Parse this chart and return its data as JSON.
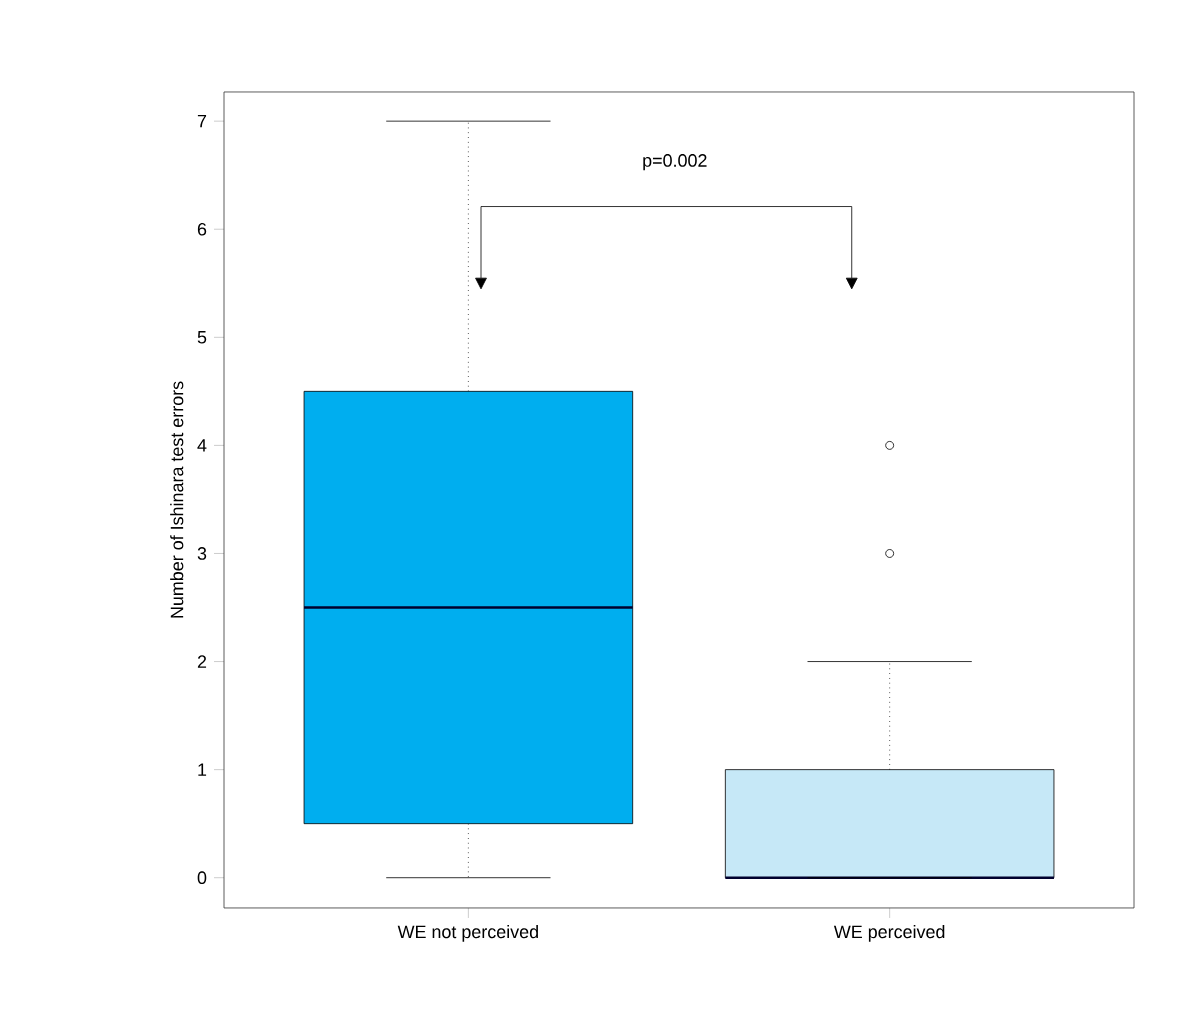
{
  "chart_data": {
    "type": "box",
    "ylabel": "Number of Ishinara test errors",
    "categories": [
      "WE not perceived",
      "WE perceived"
    ],
    "boxes": [
      {
        "low": 0,
        "q1": 0.5,
        "median": 2.5,
        "q3": 4.5,
        "high": 7
      },
      {
        "low": 0,
        "q1": 0,
        "median": 0,
        "q3": 1,
        "high": 2,
        "outliers": [
          3,
          4
        ]
      }
    ],
    "colors": [
      "#00aeef",
      "#c6e8f7"
    ],
    "ylim": [
      -0.28,
      7.27
    ],
    "yticks": [
      0,
      1,
      2,
      3,
      4,
      5,
      6,
      7
    ],
    "annotations": [
      "p=0.002"
    ]
  }
}
